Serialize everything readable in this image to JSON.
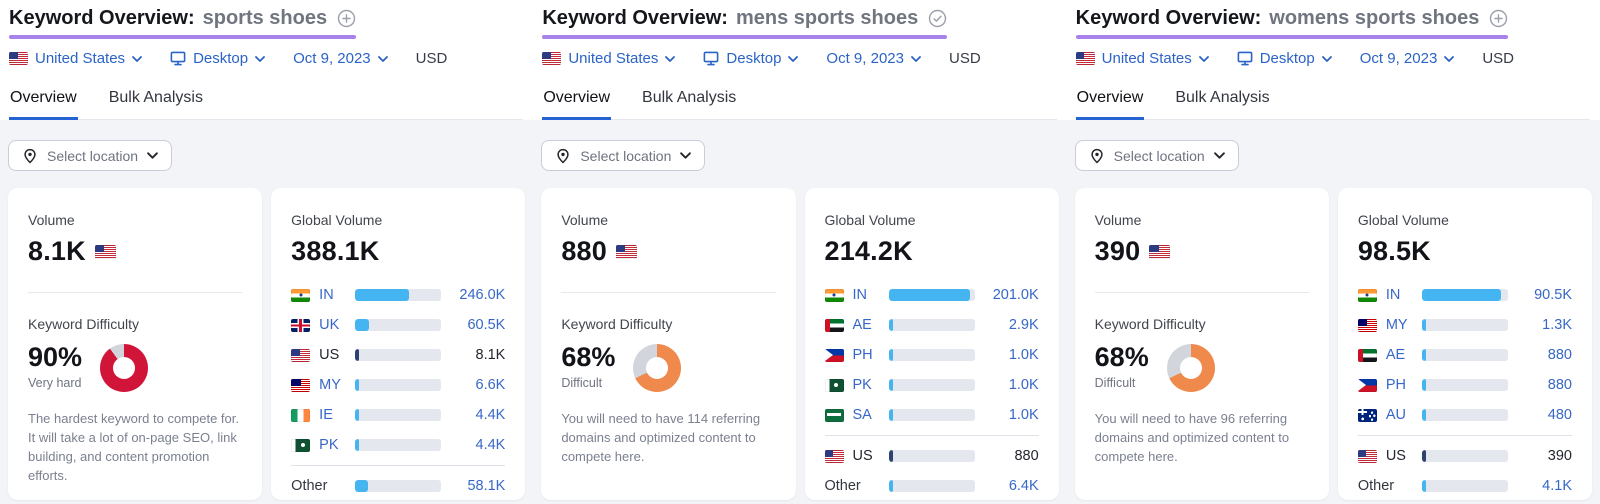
{
  "colors": {
    "title_underline": "#a782ea",
    "tab_active_blue": "#2563d4",
    "link_blue": "#2b63c6",
    "value_blue": "#3767c8",
    "bar_fill_blue": "#45b5f2",
    "bar_selected_navy": "#2e4272",
    "bar_track": "#e4e7ee",
    "donut_track": "#d2d5dc",
    "kd_red": "#d11539",
    "kd_orange": "#ef8a4c"
  },
  "panels": [
    {
      "title_prefix": "Keyword Overview:",
      "keyword": "sports shoes",
      "title_icon": "plus-circle",
      "filters": {
        "location": "United States",
        "device": "Desktop",
        "date": "Oct 9, 2023",
        "currency": "USD"
      },
      "tabs": [
        {
          "label": "Overview",
          "active": true
        },
        {
          "label": "Bulk Analysis",
          "active": false
        }
      ],
      "select_location_label": "Select location",
      "volume_card": {
        "label": "Volume",
        "value": "8.1K",
        "flag": "us"
      },
      "difficulty": {
        "label": "Keyword Difficulty",
        "percent": "90%",
        "pct": 90,
        "level": "Very hard",
        "color": "#d11539",
        "description": "The hardest keyword to compete for. It will take a lot of on-page SEO, link building, and content promotion efforts."
      },
      "global_card": {
        "label": "Global Volume",
        "total": "388.1K",
        "rows": [
          {
            "code": "IN",
            "flag": "in",
            "value": "246.0K",
            "pct": 63,
            "selected": false
          },
          {
            "code": "UK",
            "flag": "gb",
            "value": "60.5K",
            "pct": 16,
            "selected": false
          },
          {
            "code": "US",
            "flag": "us",
            "value": "8.1K",
            "pct": 2,
            "selected": true
          },
          {
            "code": "MY",
            "flag": "my",
            "value": "6.6K",
            "pct": 2,
            "selected": false
          },
          {
            "code": "IE",
            "flag": "ie",
            "value": "4.4K",
            "pct": 1.5,
            "selected": false
          },
          {
            "code": "PK",
            "flag": "pk",
            "value": "4.4K",
            "pct": 1.5,
            "selected": false
          },
          {
            "label": "Other",
            "value": "58.1K",
            "pct": 15,
            "selected": false,
            "divider_before": true
          }
        ]
      }
    },
    {
      "title_prefix": "Keyword Overview:",
      "keyword": "mens sports shoes",
      "title_icon": "check-circle",
      "filters": {
        "location": "United States",
        "device": "Desktop",
        "date": "Oct 9, 2023",
        "currency": "USD"
      },
      "tabs": [
        {
          "label": "Overview",
          "active": true
        },
        {
          "label": "Bulk Analysis",
          "active": false
        }
      ],
      "select_location_label": "Select location",
      "volume_card": {
        "label": "Volume",
        "value": "880",
        "flag": "us"
      },
      "difficulty": {
        "label": "Keyword Difficulty",
        "percent": "68%",
        "pct": 68,
        "level": "Difficult",
        "color": "#ef8a4c",
        "description": "You will need to have 114 referring domains and optimized content to compete here."
      },
      "global_card": {
        "label": "Global Volume",
        "total": "214.2K",
        "rows": [
          {
            "code": "IN",
            "flag": "in",
            "value": "201.0K",
            "pct": 94,
            "selected": false
          },
          {
            "code": "AE",
            "flag": "ae",
            "value": "2.9K",
            "pct": 1.5,
            "selected": false
          },
          {
            "code": "PH",
            "flag": "ph",
            "value": "1.0K",
            "pct": 1,
            "selected": false
          },
          {
            "code": "PK",
            "flag": "pk",
            "value": "1.0K",
            "pct": 1,
            "selected": false
          },
          {
            "code": "SA",
            "flag": "sa",
            "value": "1.0K",
            "pct": 1,
            "selected": false
          },
          {
            "code": "US",
            "flag": "us",
            "value": "880",
            "pct": 0.8,
            "selected": true,
            "divider_before": true
          },
          {
            "label": "Other",
            "value": "6.4K",
            "pct": 3,
            "selected": false
          }
        ]
      }
    },
    {
      "title_prefix": "Keyword Overview:",
      "keyword": "womens sports shoes",
      "title_icon": "plus-circle",
      "filters": {
        "location": "United States",
        "device": "Desktop",
        "date": "Oct 9, 2023",
        "currency": "USD"
      },
      "tabs": [
        {
          "label": "Overview",
          "active": true
        },
        {
          "label": "Bulk Analysis",
          "active": false
        }
      ],
      "select_location_label": "Select location",
      "volume_card": {
        "label": "Volume",
        "value": "390",
        "flag": "us"
      },
      "difficulty": {
        "label": "Keyword Difficulty",
        "percent": "68%",
        "pct": 68,
        "level": "Difficult",
        "color": "#ef8a4c",
        "description": "You will need to have 96 referring domains and optimized content to compete here."
      },
      "global_card": {
        "label": "Global Volume",
        "total": "98.5K",
        "rows": [
          {
            "code": "IN",
            "flag": "in",
            "value": "90.5K",
            "pct": 92,
            "selected": false
          },
          {
            "code": "MY",
            "flag": "my",
            "value": "1.3K",
            "pct": 1.5,
            "selected": false
          },
          {
            "code": "AE",
            "flag": "ae",
            "value": "880",
            "pct": 1,
            "selected": false
          },
          {
            "code": "PH",
            "flag": "ph",
            "value": "880",
            "pct": 1,
            "selected": false
          },
          {
            "code": "AU",
            "flag": "au",
            "value": "480",
            "pct": 0.8,
            "selected": false
          },
          {
            "code": "US",
            "flag": "us",
            "value": "390",
            "pct": 0.8,
            "selected": true,
            "divider_before": true
          },
          {
            "label": "Other",
            "value": "4.1K",
            "pct": 4,
            "selected": false
          }
        ]
      }
    }
  ]
}
